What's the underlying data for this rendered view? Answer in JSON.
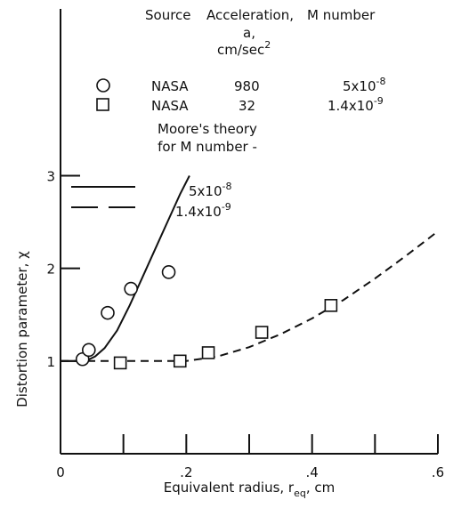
{
  "chart_data": {
    "type": "scatter",
    "xlabel": "Equivalent radius, r",
    "xlabel_subscript": "eq",
    "xlabel_unit": ", cm",
    "ylabel": "Distortion parameter, χ",
    "xlim": [
      0,
      0.6
    ],
    "ylim": [
      0,
      4.8
    ],
    "x_ticks": [
      {
        "value": 0,
        "label": "0"
      },
      {
        "value": 0.2,
        "label": ".2"
      },
      {
        "value": 0.4,
        "label": ".4"
      },
      {
        "value": 0.6,
        "label": ".6"
      }
    ],
    "y_ticks": [
      {
        "value": 1,
        "label": "1"
      },
      {
        "value": 2,
        "label": "2"
      },
      {
        "value": 3,
        "label": "3"
      }
    ],
    "x_minor_ticks": [
      0.1,
      0.3,
      0.5
    ],
    "grid": false,
    "legend": {
      "header": {
        "source": "Source",
        "acceleration_line1": "Acceleration,",
        "acceleration_line2": "a,",
        "acceleration_unit": "cm/sec",
        "acceleration_unit_exp": "2",
        "mnumber": "M number"
      },
      "theory_title_line1": "Moore's theory",
      "theory_title_line2": "for M number -",
      "theory_solid_base": "5x10",
      "theory_solid_exp": "-8",
      "theory_dashed_base": "1.4x10",
      "theory_dashed_exp": "-9"
    },
    "series": [
      {
        "marker": "circle",
        "source": "NASA",
        "acceleration": "980",
        "mnumber_base": "5x10",
        "mnumber_exp": "-8",
        "x": [
          0.035,
          0.045,
          0.075,
          0.112,
          0.172
        ],
        "y": [
          1.02,
          1.12,
          1.52,
          1.78,
          1.96
        ]
      },
      {
        "marker": "square",
        "source": "NASA",
        "acceleration": "32",
        "mnumber_base": "1.4x10",
        "mnumber_exp": "-9",
        "x": [
          0.095,
          0.19,
          0.235,
          0.32,
          0.43
        ],
        "y": [
          0.98,
          1.0,
          1.09,
          1.31,
          1.6
        ]
      }
    ],
    "curves": [
      {
        "style": "solid",
        "x": [
          0.0,
          0.04,
          0.055,
          0.07,
          0.09,
          0.11,
          0.13,
          0.15,
          0.17,
          0.19,
          0.205
        ],
        "y": [
          1.0,
          1.0,
          1.05,
          1.14,
          1.33,
          1.6,
          1.9,
          2.2,
          2.5,
          2.8,
          3.0
        ]
      },
      {
        "style": "dashed",
        "x": [
          0.0,
          0.2,
          0.25,
          0.3,
          0.35,
          0.4,
          0.45,
          0.5,
          0.55,
          0.6
        ],
        "y": [
          1.0,
          1.0,
          1.05,
          1.15,
          1.29,
          1.46,
          1.66,
          1.89,
          2.14,
          2.4
        ]
      }
    ]
  }
}
